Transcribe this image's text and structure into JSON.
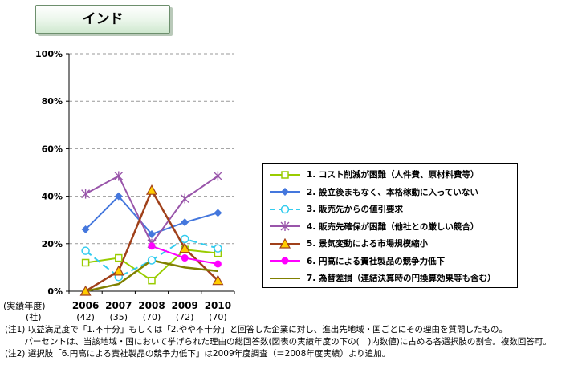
{
  "chart_data": {
    "type": "line",
    "title": "インド",
    "categories": [
      "2006",
      "2007",
      "2008",
      "2009",
      "2010"
    ],
    "counts": [
      "(42)",
      "(35)",
      "(70)",
      "(72)",
      "(70)"
    ],
    "row_labels": [
      "(実績年度)",
      "(社)"
    ],
    "ylim": [
      0,
      100
    ],
    "yticks": [
      "0%",
      "20%",
      "40%",
      "60%",
      "80%",
      "100%"
    ],
    "grid": true,
    "legend_position": "right",
    "series": [
      {
        "name": "1. コスト削減が困難（人件費、原材料費等）",
        "color": "#99cc00",
        "dash": "",
        "marker": "square-open",
        "values": [
          12,
          14,
          4.5,
          17.5,
          16
        ]
      },
      {
        "name": "2. 設立後まもなく、本格稼動に入っていない",
        "color": "#4477dd",
        "dash": "",
        "marker": "diamond",
        "values": [
          26,
          40,
          24,
          29,
          33
        ]
      },
      {
        "name": "3. 販売先からの値引要求",
        "color": "#33ccee",
        "dash": "9,5",
        "marker": "circle-open",
        "values": [
          17,
          6,
          13,
          22,
          18
        ]
      },
      {
        "name": "4. 販売先確保が困難（他社との厳しい競合）",
        "color": "#9955aa",
        "dash": "",
        "marker": "star",
        "values": [
          41,
          48.5,
          20,
          39,
          48.5
        ]
      },
      {
        "name": "5. 景気変動による市場規模縮小",
        "color": "#a0401a",
        "dash": "",
        "marker": "triangle",
        "values": [
          0,
          8.5,
          42.5,
          18,
          4.5
        ]
      },
      {
        "name": "6. 円高による責社製品の競争力低下",
        "color": "#ff00ff",
        "dash": "",
        "marker": "circle",
        "values": [
          null,
          null,
          19,
          14,
          11.5
        ]
      },
      {
        "name": "7. 為替差損（連結決算時の円換算効果等も含む）",
        "color": "#808000",
        "dash": "",
        "marker": "none",
        "values": [
          0,
          3,
          13,
          10,
          8.5
        ]
      }
    ]
  },
  "notes": [
    "(注1) 収益満足度で「1.不十分」もしくは「2.やや不十分」と回答した企業に対し、進出先地域・国ごとにその理由を質問したもの。",
    "　　 パーセントは、当該地域・国において挙げられた理由の総回答数(図表の実績年度の下の(　)内数値)に占める各選択肢の割合。複数回答可。",
    "(注2) 選択肢「6.円高による責社製品の競争力低下」は2009年度調査（＝2008年度実績）より追加。"
  ]
}
